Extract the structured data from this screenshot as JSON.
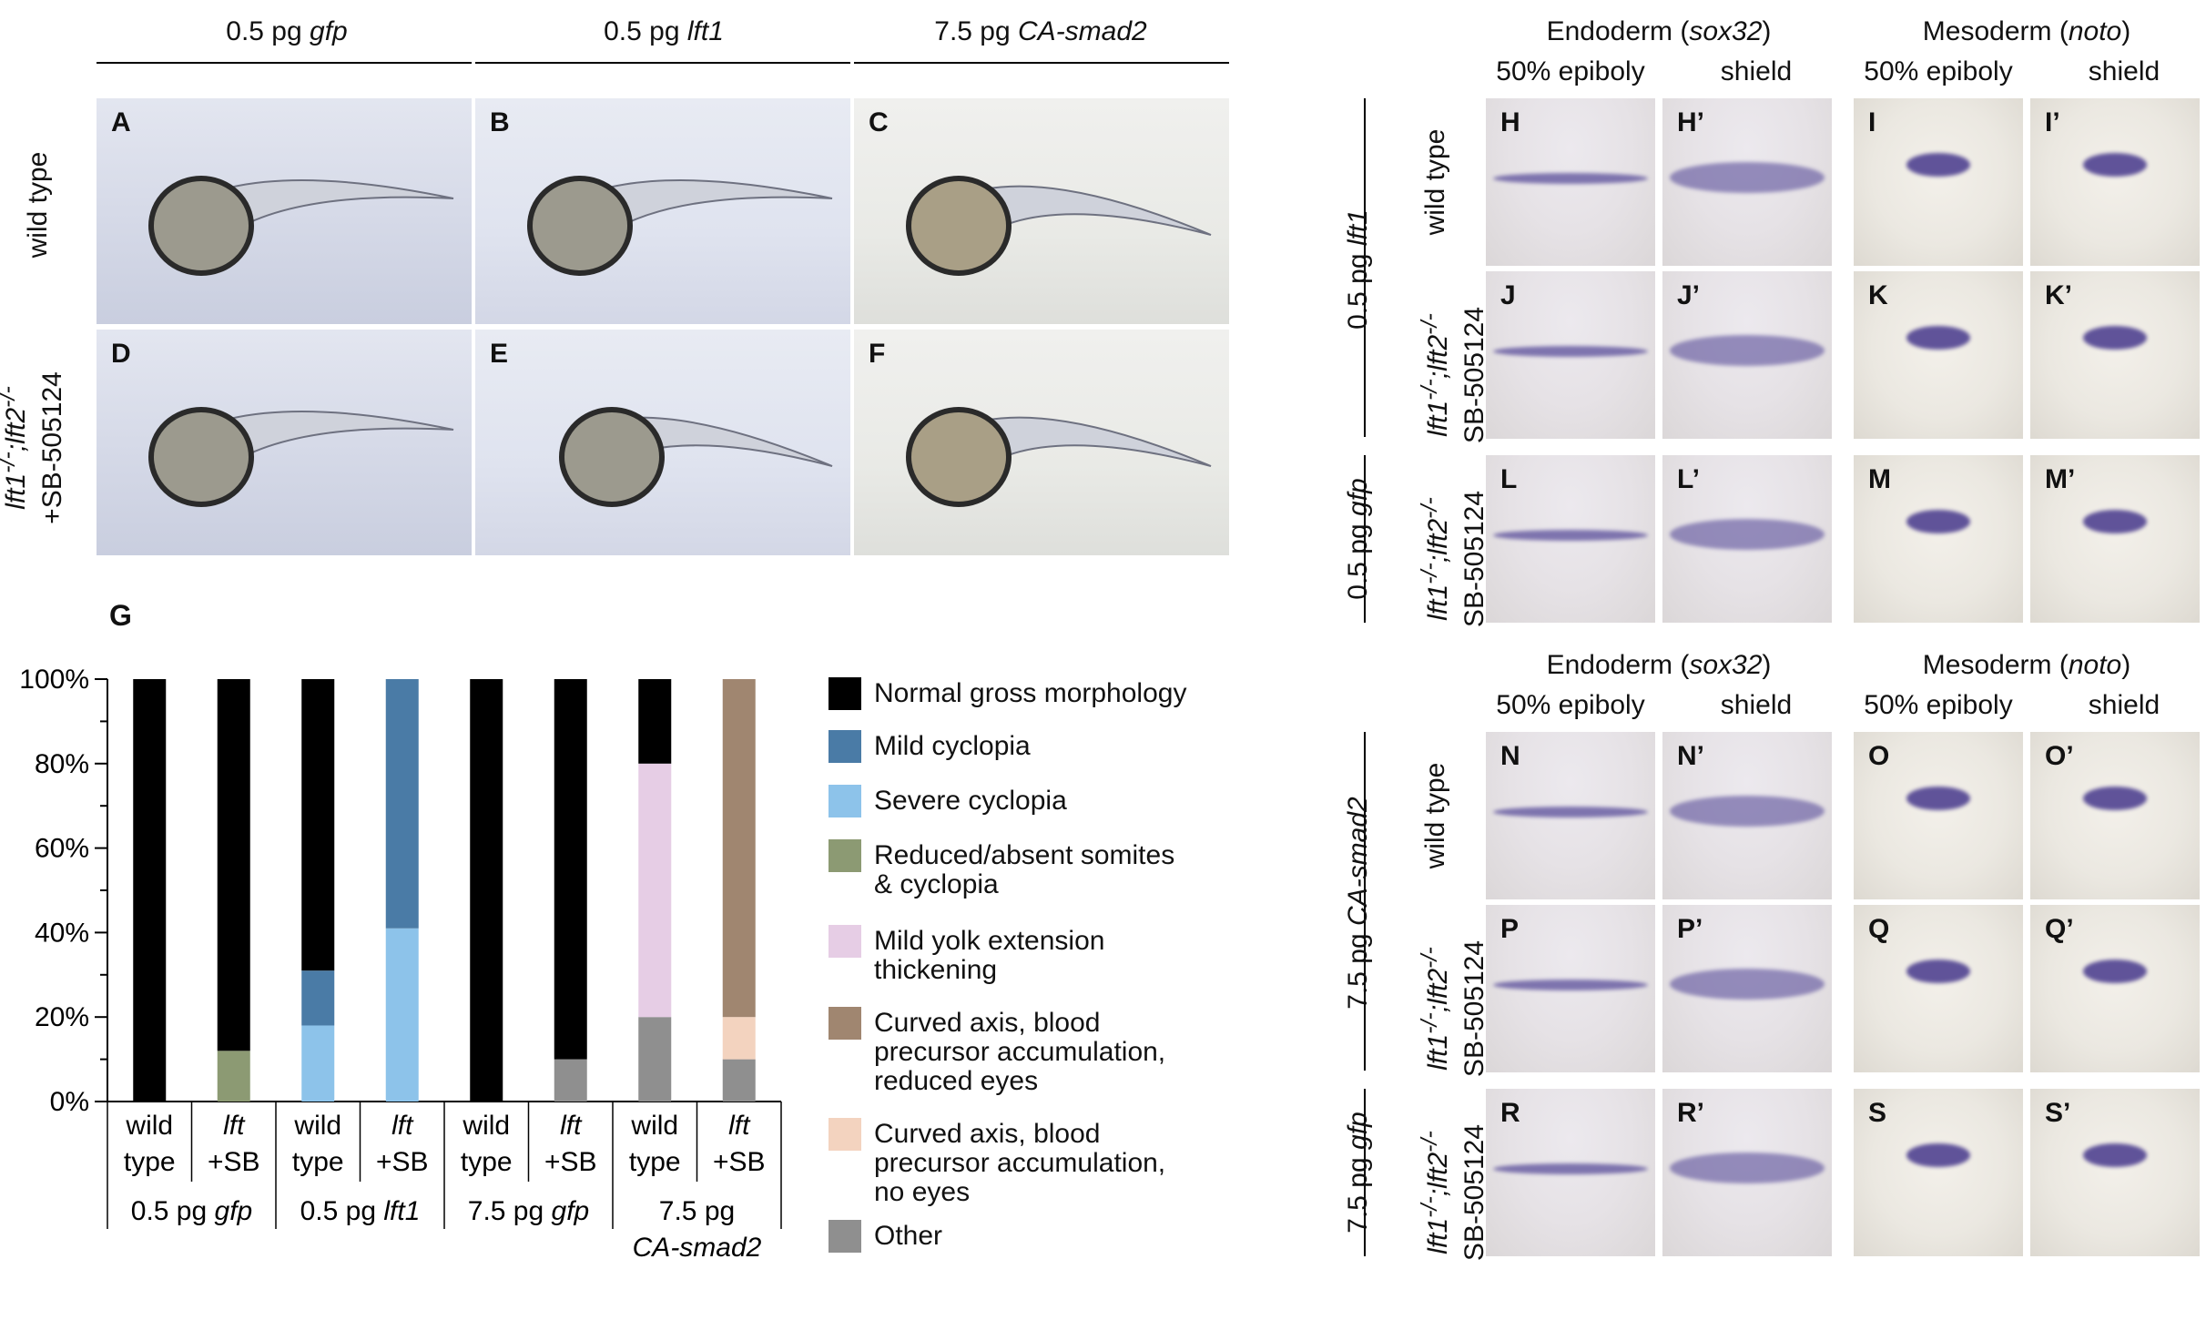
{
  "figure": {
    "top_headers": {
      "col1": {
        "prefix": "0.5 pg ",
        "gene": "gfp"
      },
      "col2": {
        "prefix": "0.5 pg ",
        "gene": "lft1"
      },
      "col3": {
        "prefix": "7.5 pg ",
        "gene": "CA-smad2"
      }
    },
    "row_labels": {
      "row1": "wild type",
      "row2_genotype": "lft1-/-;lft2-/-",
      "row2_treatment": "+SB-505124"
    },
    "embryo_panels": [
      "A",
      "B",
      "C",
      "D",
      "E",
      "F"
    ],
    "panel_g_label": "G"
  },
  "chart_data": {
    "type": "bar",
    "stacked": true,
    "title": "",
    "ylabel": "",
    "ylim": [
      0,
      100
    ],
    "yticks": [
      "0%",
      "20%",
      "40%",
      "60%",
      "80%",
      "100%"
    ],
    "categories": [
      {
        "line1": "wild",
        "line2": "type"
      },
      {
        "line1": "lft",
        "line2": "+SB"
      },
      {
        "line1": "wild",
        "line2": "type"
      },
      {
        "line1": "lft",
        "line2": "+SB"
      },
      {
        "line1": "wild",
        "line2": "type"
      },
      {
        "line1": "lft",
        "line2": "+SB"
      },
      {
        "line1": "wild",
        "line2": "type"
      },
      {
        "line1": "lft",
        "line2": "+SB"
      }
    ],
    "groups": [
      {
        "line1": "0.5 pg ",
        "gene": "gfp"
      },
      {
        "line1": "0.5 pg ",
        "gene": "lft1"
      },
      {
        "line1": "7.5 pg ",
        "gene": "gfp"
      },
      {
        "line1": "7.5 pg",
        "gene": "CA-smad2"
      }
    ],
    "series": [
      {
        "name": "Other",
        "color": "#8f8f8f",
        "values": [
          0,
          0,
          0,
          0,
          0,
          10,
          20,
          10
        ]
      },
      {
        "name": "Curved axis, blood precursor accumulation, no eyes",
        "color": "#f3d3bf",
        "values": [
          0,
          0,
          0,
          0,
          0,
          0,
          0,
          10
        ]
      },
      {
        "name": "Curved axis, blood precursor accumulation, reduced eyes",
        "color": "#a08670",
        "values": [
          0,
          0,
          0,
          0,
          0,
          0,
          0,
          80
        ]
      },
      {
        "name": "Mild yolk extension thickening",
        "color": "#e6cde5",
        "values": [
          0,
          0,
          0,
          0,
          0,
          0,
          60,
          0
        ]
      },
      {
        "name": "Reduced/absent somites & cyclopia",
        "color": "#8c9a73",
        "values": [
          0,
          12,
          0,
          0,
          0,
          0,
          0,
          0
        ]
      },
      {
        "name": "Severe cyclopia",
        "color": "#8dc3ea",
        "values": [
          0,
          0,
          18,
          41,
          0,
          0,
          0,
          0
        ]
      },
      {
        "name": "Mild cyclopia",
        "color": "#4a7ba6",
        "values": [
          0,
          0,
          13,
          59,
          0,
          0,
          0,
          0
        ]
      },
      {
        "name": "Normal gross morphology",
        "color": "#000000",
        "values": [
          100,
          88,
          69,
          0,
          100,
          90,
          20,
          0
        ]
      }
    ],
    "legend": [
      {
        "text": "Normal gross morphology",
        "color": "#000000"
      },
      {
        "text": "Mild cyclopia",
        "color": "#4a7ba6"
      },
      {
        "text": "Severe cyclopia",
        "color": "#8dc3ea"
      },
      {
        "line1": "Reduced/absent somites",
        "line2": "& cyclopia",
        "color": "#8c9a73"
      },
      {
        "line1": "Mild yolk extension",
        "line2": "thickening",
        "color": "#e6cde5"
      },
      {
        "line1": "Curved axis, blood",
        "line2": "precursor accumulation,",
        "line3": "reduced eyes",
        "color": "#a08670"
      },
      {
        "line1": "Curved axis, blood",
        "line2": "precursor accumulation,",
        "line3": "no eyes",
        "color": "#f3d3bf"
      },
      {
        "text": "Other",
        "color": "#8f8f8f"
      }
    ],
    "legend_position": "right"
  },
  "insitu": {
    "top": {
      "endoderm": {
        "prefix": "Endoderm (",
        "gene": "sox32",
        "suffix": ")"
      },
      "mesoderm": {
        "prefix": "Mesoderm (",
        "gene": "noto",
        "suffix": ")"
      },
      "stage1": "50% epiboly",
      "stage2": "shield",
      "stage3": "50% epiboly",
      "stage4": "shield",
      "group1": {
        "prefix": "0.5 pg ",
        "gene": "lft1"
      },
      "group2": {
        "prefix": "0.5 pg ",
        "gene": "gfp"
      },
      "row_wt": "wild type",
      "row_mut_genotype": "lft1-/-;lft2-/-",
      "row_mut_treatment": "SB-505124",
      "labels": [
        "H",
        "H’",
        "I",
        "I’",
        "J",
        "J’",
        "K",
        "K’",
        "L",
        "L’",
        "M",
        "M’"
      ]
    },
    "bottom": {
      "endoderm": {
        "prefix": "Endoderm (",
        "gene": "sox32",
        "suffix": ")"
      },
      "mesoderm": {
        "prefix": "Mesoderm (",
        "gene": "noto",
        "suffix": ")"
      },
      "stage1": "50% epiboly",
      "stage2": "shield",
      "stage3": "50% epiboly",
      "stage4": "shield",
      "group1": {
        "prefix": "7.5 pg ",
        "gene": "CA-smad2"
      },
      "group2": {
        "prefix": "7.5 pg ",
        "gene": "gfp"
      },
      "row_wt": "wild type",
      "row_mut_genotype": "lft1-/-;lft2-/-",
      "row_mut_treatment": "SB-505124",
      "labels": [
        "N",
        "N’",
        "O",
        "O’",
        "P",
        "P’",
        "Q",
        "Q’",
        "R",
        "R’",
        "S",
        "S’"
      ]
    }
  }
}
